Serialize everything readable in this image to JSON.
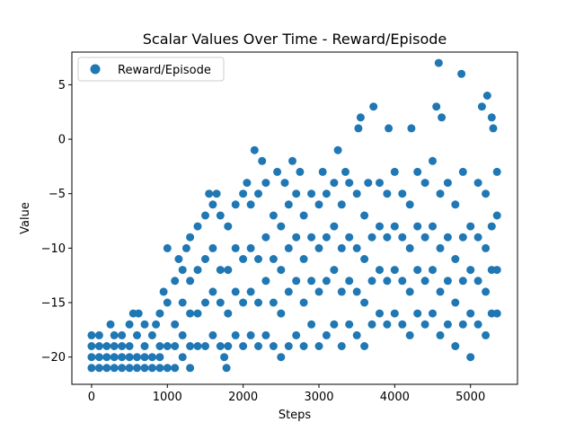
{
  "chart_data": {
    "type": "scatter",
    "title": "Scalar Values Over Time - Reward/Episode",
    "xlabel": "Steps",
    "ylabel": "Value",
    "xlim": [
      -260,
      5620
    ],
    "ylim": [
      -22.5,
      8.0
    ],
    "xticks": [
      0,
      1000,
      2000,
      3000,
      4000,
      5000
    ],
    "yticks": [
      -20,
      -15,
      -10,
      -5,
      0,
      5
    ],
    "grid": false,
    "legend_position": "upper-left",
    "color": "#1f77b4",
    "series": [
      {
        "name": "Reward/Episode",
        "points": [
          [
            0,
            -21
          ],
          [
            0,
            -20
          ],
          [
            0,
            -19
          ],
          [
            0,
            -18
          ],
          [
            100,
            -21
          ],
          [
            100,
            -20
          ],
          [
            100,
            -19
          ],
          [
            100,
            -18
          ],
          [
            200,
            -21
          ],
          [
            200,
            -20
          ],
          [
            200,
            -19
          ],
          [
            250,
            -17
          ],
          [
            300,
            -21
          ],
          [
            300,
            -20
          ],
          [
            300,
            -19
          ],
          [
            300,
            -18
          ],
          [
            400,
            -21
          ],
          [
            400,
            -20
          ],
          [
            400,
            -19
          ],
          [
            400,
            -18
          ],
          [
            500,
            -21
          ],
          [
            500,
            -20
          ],
          [
            500,
            -19
          ],
          [
            500,
            -17
          ],
          [
            550,
            -16
          ],
          [
            600,
            -21
          ],
          [
            600,
            -20
          ],
          [
            600,
            -18
          ],
          [
            620,
            -16
          ],
          [
            700,
            -21
          ],
          [
            700,
            -20
          ],
          [
            700,
            -19
          ],
          [
            700,
            -17
          ],
          [
            800,
            -21
          ],
          [
            800,
            -20
          ],
          [
            800,
            -18
          ],
          [
            850,
            -17
          ],
          [
            900,
            -21
          ],
          [
            900,
            -20
          ],
          [
            900,
            -19
          ],
          [
            900,
            -16
          ],
          [
            950,
            -14
          ],
          [
            1000,
            -21
          ],
          [
            1000,
            -19
          ],
          [
            1000,
            -15
          ],
          [
            1000,
            -10
          ],
          [
            1100,
            -21
          ],
          [
            1100,
            -19
          ],
          [
            1100,
            -17
          ],
          [
            1100,
            -13
          ],
          [
            1150,
            -11
          ],
          [
            1200,
            -20
          ],
          [
            1200,
            -18
          ],
          [
            1200,
            -15
          ],
          [
            1200,
            -12
          ],
          [
            1250,
            -10
          ],
          [
            1300,
            -21
          ],
          [
            1300,
            -19
          ],
          [
            1300,
            -16
          ],
          [
            1300,
            -13
          ],
          [
            1300,
            -9
          ],
          [
            1400,
            -19
          ],
          [
            1400,
            -16
          ],
          [
            1400,
            -12
          ],
          [
            1400,
            -8
          ],
          [
            1500,
            -19
          ],
          [
            1500,
            -15
          ],
          [
            1500,
            -11
          ],
          [
            1500,
            -7
          ],
          [
            1550,
            -5
          ],
          [
            1600,
            -18
          ],
          [
            1600,
            -14
          ],
          [
            1600,
            -10
          ],
          [
            1600,
            -6
          ],
          [
            1650,
            -5
          ],
          [
            1700,
            -19
          ],
          [
            1700,
            -15
          ],
          [
            1700,
            -12
          ],
          [
            1700,
            -7
          ],
          [
            1750,
            -20
          ],
          [
            1780,
            -21
          ],
          [
            1800,
            -19
          ],
          [
            1800,
            -16
          ],
          [
            1800,
            -12
          ],
          [
            1800,
            -8
          ],
          [
            1900,
            -18
          ],
          [
            1900,
            -14
          ],
          [
            1900,
            -10
          ],
          [
            1900,
            -6
          ],
          [
            2000,
            -19
          ],
          [
            2000,
            -15
          ],
          [
            2000,
            -11
          ],
          [
            2000,
            -5
          ],
          [
            2050,
            -4
          ],
          [
            2100,
            -18
          ],
          [
            2100,
            -14
          ],
          [
            2100,
            -10
          ],
          [
            2100,
            -6
          ],
          [
            2150,
            -1
          ],
          [
            2200,
            -19
          ],
          [
            2200,
            -15
          ],
          [
            2200,
            -11
          ],
          [
            2200,
            -5
          ],
          [
            2250,
            -2
          ],
          [
            2300,
            -18
          ],
          [
            2300,
            -13
          ],
          [
            2300,
            -9
          ],
          [
            2300,
            -4
          ],
          [
            2400,
            -19
          ],
          [
            2400,
            -15
          ],
          [
            2400,
            -11
          ],
          [
            2400,
            -7
          ],
          [
            2450,
            -3
          ],
          [
            2500,
            -20
          ],
          [
            2500,
            -16
          ],
          [
            2500,
            -12
          ],
          [
            2500,
            -8
          ],
          [
            2550,
            -4
          ],
          [
            2600,
            -19
          ],
          [
            2600,
            -14
          ],
          [
            2600,
            -10
          ],
          [
            2600,
            -6
          ],
          [
            2650,
            -2
          ],
          [
            2700,
            -18
          ],
          [
            2700,
            -13
          ],
          [
            2700,
            -9
          ],
          [
            2700,
            -5
          ],
          [
            2750,
            -3
          ],
          [
            2800,
            -19
          ],
          [
            2800,
            -15
          ],
          [
            2800,
            -11
          ],
          [
            2800,
            -7
          ],
          [
            2900,
            -17
          ],
          [
            2900,
            -13
          ],
          [
            2900,
            -9
          ],
          [
            2900,
            -5
          ],
          [
            3000,
            -19
          ],
          [
            3000,
            -14
          ],
          [
            3000,
            -10
          ],
          [
            3000,
            -6
          ],
          [
            3050,
            -3
          ],
          [
            3100,
            -18
          ],
          [
            3100,
            -13
          ],
          [
            3100,
            -9
          ],
          [
            3100,
            -5
          ],
          [
            3200,
            -17
          ],
          [
            3200,
            -12
          ],
          [
            3200,
            -8
          ],
          [
            3200,
            -4
          ],
          [
            3250,
            -1
          ],
          [
            3300,
            -19
          ],
          [
            3300,
            -14
          ],
          [
            3300,
            -10
          ],
          [
            3300,
            -6
          ],
          [
            3350,
            -3
          ],
          [
            3400,
            -17
          ],
          [
            3400,
            -13
          ],
          [
            3400,
            -9
          ],
          [
            3400,
            -4
          ],
          [
            3500,
            -18
          ],
          [
            3500,
            -14
          ],
          [
            3500,
            -10
          ],
          [
            3500,
            -5
          ],
          [
            3520,
            1
          ],
          [
            3550,
            2
          ],
          [
            3600,
            -19
          ],
          [
            3600,
            -15
          ],
          [
            3600,
            -11
          ],
          [
            3600,
            -7
          ],
          [
            3650,
            -4
          ],
          [
            3700,
            -17
          ],
          [
            3700,
            -13
          ],
          [
            3700,
            -9
          ],
          [
            3720,
            3
          ],
          [
            3800,
            -16
          ],
          [
            3800,
            -12
          ],
          [
            3800,
            -8
          ],
          [
            3800,
            -4
          ],
          [
            3900,
            -17
          ],
          [
            3900,
            -13
          ],
          [
            3900,
            -9
          ],
          [
            3900,
            -5
          ],
          [
            3920,
            1
          ],
          [
            4000,
            -16
          ],
          [
            4000,
            -12
          ],
          [
            4000,
            -8
          ],
          [
            4000,
            -3
          ],
          [
            4100,
            -17
          ],
          [
            4100,
            -13
          ],
          [
            4100,
            -9
          ],
          [
            4100,
            -5
          ],
          [
            4200,
            -18
          ],
          [
            4200,
            -14
          ],
          [
            4200,
            -10
          ],
          [
            4200,
            -6
          ],
          [
            4220,
            1
          ],
          [
            4300,
            -16
          ],
          [
            4300,
            -12
          ],
          [
            4300,
            -8
          ],
          [
            4300,
            -3
          ],
          [
            4400,
            -17
          ],
          [
            4400,
            -13
          ],
          [
            4400,
            -9
          ],
          [
            4400,
            -4
          ],
          [
            4500,
            -16
          ],
          [
            4500,
            -12
          ],
          [
            4500,
            -8
          ],
          [
            4500,
            -2
          ],
          [
            4550,
            3
          ],
          [
            4580,
            7
          ],
          [
            4600,
            -18
          ],
          [
            4600,
            -14
          ],
          [
            4600,
            -10
          ],
          [
            4600,
            -5
          ],
          [
            4620,
            2
          ],
          [
            4700,
            -17
          ],
          [
            4700,
            -13
          ],
          [
            4700,
            -9
          ],
          [
            4700,
            -4
          ],
          [
            4800,
            -19
          ],
          [
            4800,
            -15
          ],
          [
            4800,
            -11
          ],
          [
            4800,
            -6
          ],
          [
            4880,
            6
          ],
          [
            4900,
            -17
          ],
          [
            4900,
            -13
          ],
          [
            4900,
            -9
          ],
          [
            4900,
            -3
          ],
          [
            5000,
            -20
          ],
          [
            5000,
            -16
          ],
          [
            5000,
            -12
          ],
          [
            5000,
            -8
          ],
          [
            5100,
            -17
          ],
          [
            5100,
            -13
          ],
          [
            5100,
            -9
          ],
          [
            5100,
            -4
          ],
          [
            5150,
            3
          ],
          [
            5200,
            -18
          ],
          [
            5200,
            -14
          ],
          [
            5200,
            -10
          ],
          [
            5200,
            -5
          ],
          [
            5220,
            4
          ],
          [
            5280,
            -16
          ],
          [
            5280,
            -12
          ],
          [
            5280,
            -8
          ],
          [
            5280,
            2
          ],
          [
            5300,
            1
          ],
          [
            5350,
            -16
          ],
          [
            5350,
            -12
          ],
          [
            5350,
            -7
          ],
          [
            5350,
            -3
          ]
        ]
      }
    ]
  }
}
